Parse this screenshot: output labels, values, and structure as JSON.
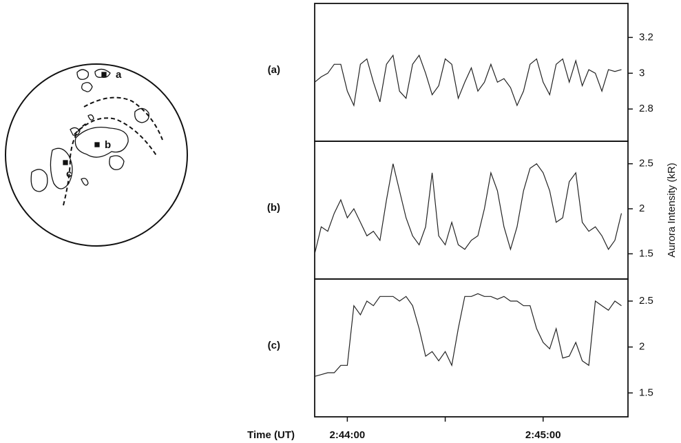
{
  "chart_data": [
    {
      "type": "line",
      "label": "(a)",
      "x": [
        9830,
        9832,
        9834,
        9836,
        9838,
        9840,
        9842,
        9844,
        9846,
        9848,
        9850,
        9852,
        9854,
        9856,
        9858,
        9860,
        9862,
        9864,
        9866,
        9868,
        9870,
        9872,
        9874,
        9876,
        9878,
        9880,
        9882,
        9884,
        9886,
        9888,
        9890,
        9892,
        9894,
        9896,
        9898,
        9900,
        9902,
        9904,
        9906,
        9908,
        9910,
        9912,
        9914,
        9916,
        9918,
        9920,
        9922,
        9924
      ],
      "values": [
        2.95,
        2.98,
        3.0,
        3.05,
        3.05,
        2.9,
        2.82,
        3.05,
        3.08,
        2.95,
        2.84,
        3.05,
        3.1,
        2.9,
        2.86,
        3.05,
        3.1,
        3.0,
        2.88,
        2.93,
        3.08,
        3.05,
        2.86,
        2.95,
        3.03,
        2.9,
        2.95,
        3.05,
        2.95,
        2.97,
        2.92,
        2.82,
        2.9,
        3.05,
        3.08,
        2.95,
        2.88,
        3.05,
        3.08,
        2.95,
        3.07,
        2.93,
        3.02,
        3.0,
        2.9,
        3.02,
        3.01,
        3.02
      ],
      "xlim": [
        9830,
        9926
      ],
      "ylim": [
        2.62,
        3.39
      ],
      "yticks": [
        2.8,
        3.0,
        3.2
      ],
      "color": "#222"
    },
    {
      "type": "line",
      "label": "(b)",
      "x": [
        9830,
        9832,
        9834,
        9836,
        9838,
        9840,
        9842,
        9844,
        9846,
        9848,
        9850,
        9852,
        9854,
        9856,
        9858,
        9860,
        9862,
        9864,
        9866,
        9868,
        9870,
        9872,
        9874,
        9876,
        9878,
        9880,
        9882,
        9884,
        9886,
        9888,
        9890,
        9892,
        9894,
        9896,
        9898,
        9900,
        9902,
        9904,
        9906,
        9908,
        9910,
        9912,
        9914,
        9916,
        9918,
        9920,
        9922,
        9924
      ],
      "values": [
        1.5,
        1.8,
        1.75,
        1.95,
        2.1,
        1.9,
        2.0,
        1.85,
        1.7,
        1.75,
        1.65,
        2.1,
        2.5,
        2.2,
        1.9,
        1.7,
        1.6,
        1.8,
        2.4,
        1.7,
        1.6,
        1.85,
        1.6,
        1.55,
        1.65,
        1.7,
        2.0,
        2.4,
        2.2,
        1.8,
        1.55,
        1.8,
        2.2,
        2.45,
        2.5,
        2.4,
        2.2,
        1.85,
        1.9,
        2.3,
        2.4,
        1.85,
        1.75,
        1.8,
        1.7,
        1.55,
        1.65,
        1.95
      ],
      "xlim": [
        9830,
        9926
      ],
      "ylim": [
        1.22,
        2.75
      ],
      "yticks": [
        1.5,
        2.0,
        2.5
      ],
      "color": "#222"
    },
    {
      "type": "line",
      "label": "(c)",
      "x": [
        9830,
        9832,
        9834,
        9836,
        9838,
        9840,
        9842,
        9844,
        9846,
        9848,
        9850,
        9852,
        9854,
        9856,
        9858,
        9860,
        9862,
        9864,
        9866,
        9868,
        9870,
        9872,
        9874,
        9876,
        9878,
        9880,
        9882,
        9884,
        9886,
        9888,
        9890,
        9892,
        9894,
        9896,
        9898,
        9900,
        9902,
        9904,
        9906,
        9908,
        9910,
        9912,
        9914,
        9916,
        9918,
        9920,
        9922,
        9924
      ],
      "values": [
        1.68,
        1.7,
        1.72,
        1.72,
        1.8,
        1.8,
        2.45,
        2.35,
        2.5,
        2.45,
        2.55,
        2.55,
        2.55,
        2.5,
        2.55,
        2.45,
        2.2,
        1.9,
        1.95,
        1.85,
        1.95,
        1.8,
        2.2,
        2.55,
        2.55,
        2.58,
        2.55,
        2.55,
        2.52,
        2.55,
        2.5,
        2.5,
        2.45,
        2.45,
        2.2,
        2.05,
        1.98,
        2.2,
        1.88,
        1.9,
        2.05,
        1.85,
        1.8,
        2.5,
        2.45,
        2.4,
        2.5,
        2.45
      ],
      "xlim": [
        9830,
        9926
      ],
      "ylim": [
        1.24,
        2.74
      ],
      "yticks": [
        1.5,
        2.0,
        2.5
      ],
      "color": "#222",
      "xticks": [
        {
          "value": 9840,
          "label": "2:44:00"
        },
        {
          "value": 9870,
          "label": null
        },
        {
          "value": 9900,
          "label": "2:45:00"
        }
      ]
    }
  ],
  "x_label": "Time (UT)",
  "y_label": "Aurora Intensity (kR)",
  "diagram_labels": [
    "a",
    "b",
    "c"
  ]
}
